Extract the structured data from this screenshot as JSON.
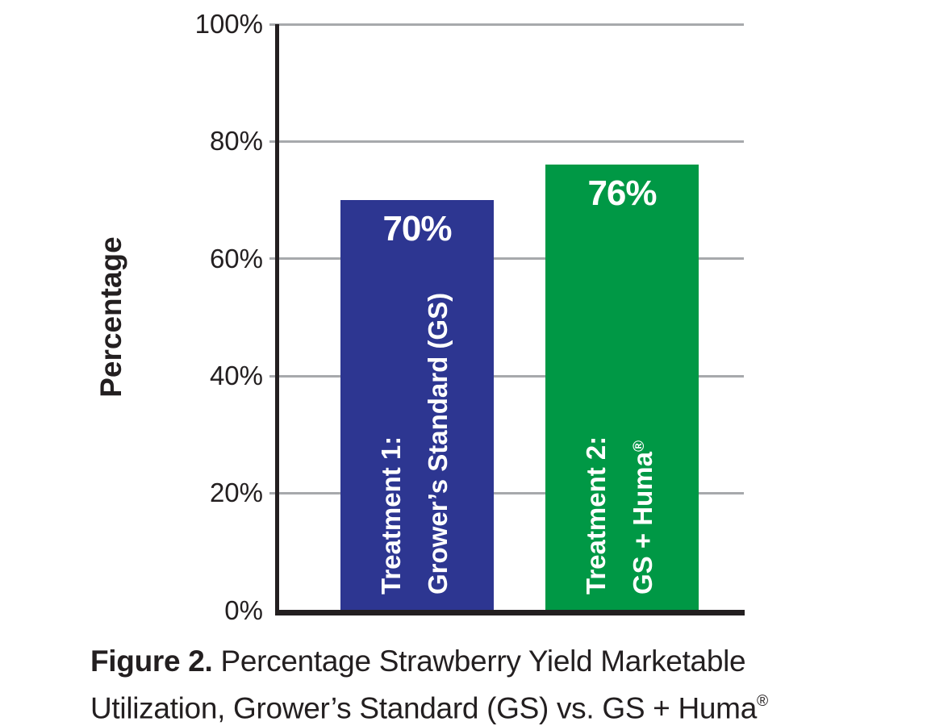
{
  "chart_data": {
    "type": "bar",
    "title": "",
    "xlabel": "",
    "ylabel": "Percentage",
    "ylim": [
      0,
      100
    ],
    "ytick_labels": [
      "100%",
      "80%",
      "60%",
      "40%",
      "20%",
      "0%"
    ],
    "grid": true,
    "legend": false,
    "categories": [
      "Treatment 1: Grower’s Standard (GS)",
      "Treatment 2: GS + Huma®"
    ],
    "values": [
      70,
      76
    ],
    "value_labels": [
      "70%",
      "76%"
    ],
    "bar_colors": [
      "#2D3691",
      "#009845"
    ],
    "bars": [
      {
        "value": 70,
        "value_label": "70%",
        "color": "#2D3691",
        "label_line1": "Treatment 1:",
        "label_line2": "Grower’s Standard (GS)",
        "label_sup": ""
      },
      {
        "value": 76,
        "value_label": "76%",
        "color": "#009845",
        "label_line1": "Treatment 2:",
        "label_line2": "GS + Huma",
        "label_sup": "®"
      }
    ]
  },
  "caption": {
    "line1_bold": "Figure 2.",
    "line1_rest": " Percentage Strawberry Yield Marketable",
    "line2": "Utilization, Grower’s Standard (GS) vs. GS + Huma",
    "sup": "®"
  },
  "colors": {
    "axis": "#231f20",
    "gridline": "#a7a9ac",
    "bar_value_text": "#ffffff"
  }
}
